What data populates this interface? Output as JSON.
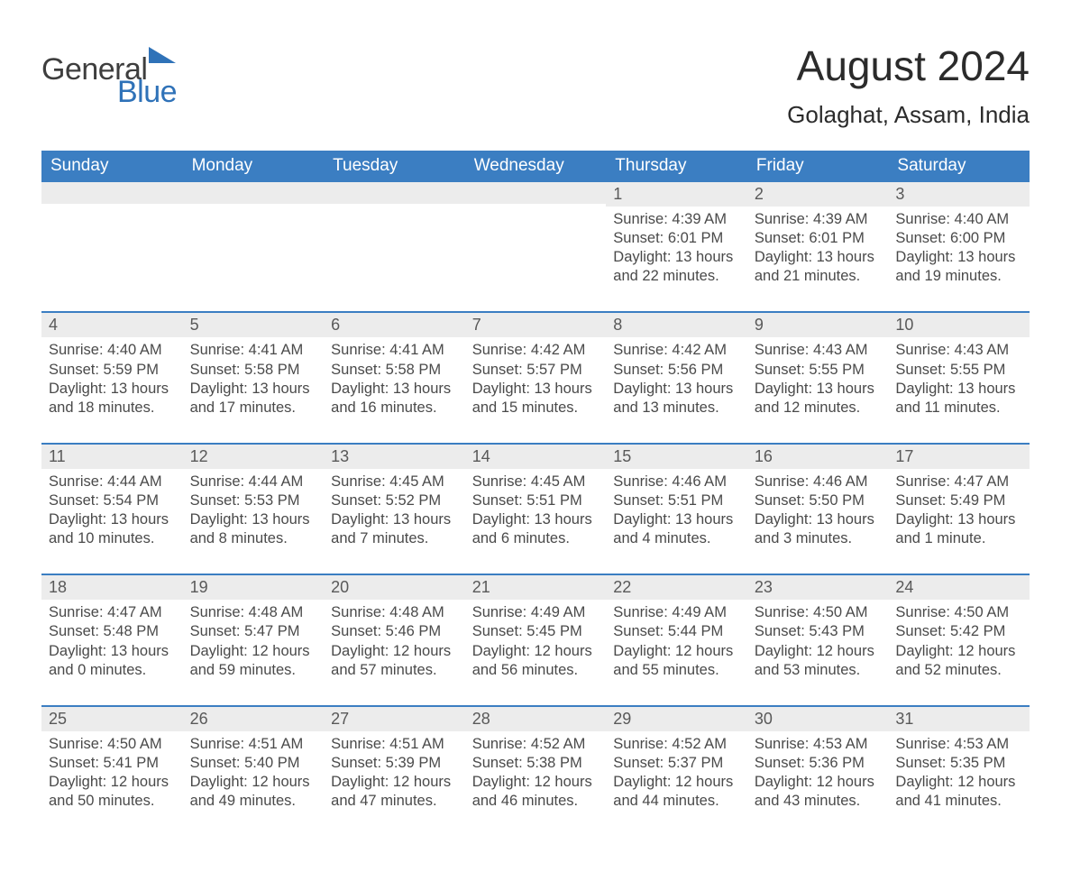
{
  "logo": {
    "text1": "General",
    "text2": "Blue"
  },
  "title": "August 2024",
  "location": "Golaghat, Assam, India",
  "colors": {
    "header_bg": "#3b7ec2",
    "header_text": "#ffffff",
    "daynum_bg": "#ececec",
    "rule": "#3b7ec2",
    "body_text": "#4a4a4a",
    "title_text": "#2b2b2b",
    "logo_gray": "#3e3e3e",
    "logo_blue": "#2f72b8"
  },
  "weekdays": [
    "Sunday",
    "Monday",
    "Tuesday",
    "Wednesday",
    "Thursday",
    "Friday",
    "Saturday"
  ],
  "weeks": [
    [
      {
        "day": "",
        "sunrise": "",
        "sunset": "",
        "daylight": ""
      },
      {
        "day": "",
        "sunrise": "",
        "sunset": "",
        "daylight": ""
      },
      {
        "day": "",
        "sunrise": "",
        "sunset": "",
        "daylight": ""
      },
      {
        "day": "",
        "sunrise": "",
        "sunset": "",
        "daylight": ""
      },
      {
        "day": "1",
        "sunrise": "Sunrise: 4:39 AM",
        "sunset": "Sunset: 6:01 PM",
        "daylight": "Daylight: 13 hours and 22 minutes."
      },
      {
        "day": "2",
        "sunrise": "Sunrise: 4:39 AM",
        "sunset": "Sunset: 6:01 PM",
        "daylight": "Daylight: 13 hours and 21 minutes."
      },
      {
        "day": "3",
        "sunrise": "Sunrise: 4:40 AM",
        "sunset": "Sunset: 6:00 PM",
        "daylight": "Daylight: 13 hours and 19 minutes."
      }
    ],
    [
      {
        "day": "4",
        "sunrise": "Sunrise: 4:40 AM",
        "sunset": "Sunset: 5:59 PM",
        "daylight": "Daylight: 13 hours and 18 minutes."
      },
      {
        "day": "5",
        "sunrise": "Sunrise: 4:41 AM",
        "sunset": "Sunset: 5:58 PM",
        "daylight": "Daylight: 13 hours and 17 minutes."
      },
      {
        "day": "6",
        "sunrise": "Sunrise: 4:41 AM",
        "sunset": "Sunset: 5:58 PM",
        "daylight": "Daylight: 13 hours and 16 minutes."
      },
      {
        "day": "7",
        "sunrise": "Sunrise: 4:42 AM",
        "sunset": "Sunset: 5:57 PM",
        "daylight": "Daylight: 13 hours and 15 minutes."
      },
      {
        "day": "8",
        "sunrise": "Sunrise: 4:42 AM",
        "sunset": "Sunset: 5:56 PM",
        "daylight": "Daylight: 13 hours and 13 minutes."
      },
      {
        "day": "9",
        "sunrise": "Sunrise: 4:43 AM",
        "sunset": "Sunset: 5:55 PM",
        "daylight": "Daylight: 13 hours and 12 minutes."
      },
      {
        "day": "10",
        "sunrise": "Sunrise: 4:43 AM",
        "sunset": "Sunset: 5:55 PM",
        "daylight": "Daylight: 13 hours and 11 minutes."
      }
    ],
    [
      {
        "day": "11",
        "sunrise": "Sunrise: 4:44 AM",
        "sunset": "Sunset: 5:54 PM",
        "daylight": "Daylight: 13 hours and 10 minutes."
      },
      {
        "day": "12",
        "sunrise": "Sunrise: 4:44 AM",
        "sunset": "Sunset: 5:53 PM",
        "daylight": "Daylight: 13 hours and 8 minutes."
      },
      {
        "day": "13",
        "sunrise": "Sunrise: 4:45 AM",
        "sunset": "Sunset: 5:52 PM",
        "daylight": "Daylight: 13 hours and 7 minutes."
      },
      {
        "day": "14",
        "sunrise": "Sunrise: 4:45 AM",
        "sunset": "Sunset: 5:51 PM",
        "daylight": "Daylight: 13 hours and 6 minutes."
      },
      {
        "day": "15",
        "sunrise": "Sunrise: 4:46 AM",
        "sunset": "Sunset: 5:51 PM",
        "daylight": "Daylight: 13 hours and 4 minutes."
      },
      {
        "day": "16",
        "sunrise": "Sunrise: 4:46 AM",
        "sunset": "Sunset: 5:50 PM",
        "daylight": "Daylight: 13 hours and 3 minutes."
      },
      {
        "day": "17",
        "sunrise": "Sunrise: 4:47 AM",
        "sunset": "Sunset: 5:49 PM",
        "daylight": "Daylight: 13 hours and 1 minute."
      }
    ],
    [
      {
        "day": "18",
        "sunrise": "Sunrise: 4:47 AM",
        "sunset": "Sunset: 5:48 PM",
        "daylight": "Daylight: 13 hours and 0 minutes."
      },
      {
        "day": "19",
        "sunrise": "Sunrise: 4:48 AM",
        "sunset": "Sunset: 5:47 PM",
        "daylight": "Daylight: 12 hours and 59 minutes."
      },
      {
        "day": "20",
        "sunrise": "Sunrise: 4:48 AM",
        "sunset": "Sunset: 5:46 PM",
        "daylight": "Daylight: 12 hours and 57 minutes."
      },
      {
        "day": "21",
        "sunrise": "Sunrise: 4:49 AM",
        "sunset": "Sunset: 5:45 PM",
        "daylight": "Daylight: 12 hours and 56 minutes."
      },
      {
        "day": "22",
        "sunrise": "Sunrise: 4:49 AM",
        "sunset": "Sunset: 5:44 PM",
        "daylight": "Daylight: 12 hours and 55 minutes."
      },
      {
        "day": "23",
        "sunrise": "Sunrise: 4:50 AM",
        "sunset": "Sunset: 5:43 PM",
        "daylight": "Daylight: 12 hours and 53 minutes."
      },
      {
        "day": "24",
        "sunrise": "Sunrise: 4:50 AM",
        "sunset": "Sunset: 5:42 PM",
        "daylight": "Daylight: 12 hours and 52 minutes."
      }
    ],
    [
      {
        "day": "25",
        "sunrise": "Sunrise: 4:50 AM",
        "sunset": "Sunset: 5:41 PM",
        "daylight": "Daylight: 12 hours and 50 minutes."
      },
      {
        "day": "26",
        "sunrise": "Sunrise: 4:51 AM",
        "sunset": "Sunset: 5:40 PM",
        "daylight": "Daylight: 12 hours and 49 minutes."
      },
      {
        "day": "27",
        "sunrise": "Sunrise: 4:51 AM",
        "sunset": "Sunset: 5:39 PM",
        "daylight": "Daylight: 12 hours and 47 minutes."
      },
      {
        "day": "28",
        "sunrise": "Sunrise: 4:52 AM",
        "sunset": "Sunset: 5:38 PM",
        "daylight": "Daylight: 12 hours and 46 minutes."
      },
      {
        "day": "29",
        "sunrise": "Sunrise: 4:52 AM",
        "sunset": "Sunset: 5:37 PM",
        "daylight": "Daylight: 12 hours and 44 minutes."
      },
      {
        "day": "30",
        "sunrise": "Sunrise: 4:53 AM",
        "sunset": "Sunset: 5:36 PM",
        "daylight": "Daylight: 12 hours and 43 minutes."
      },
      {
        "day": "31",
        "sunrise": "Sunrise: 4:53 AM",
        "sunset": "Sunset: 5:35 PM",
        "daylight": "Daylight: 12 hours and 41 minutes."
      }
    ]
  ]
}
